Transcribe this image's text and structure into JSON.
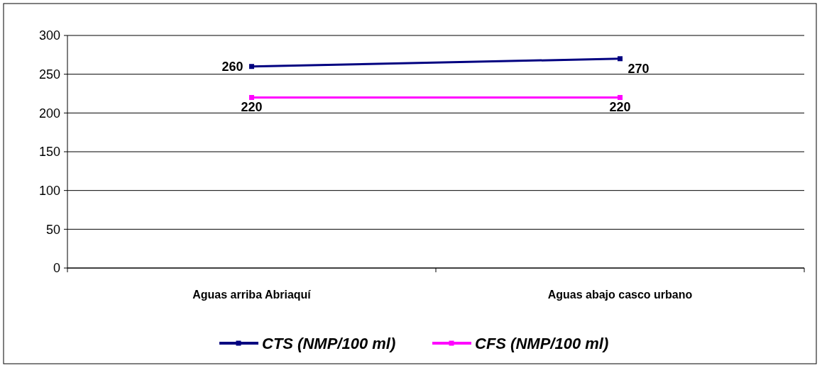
{
  "chart_data": {
    "type": "line",
    "categories": [
      "Aguas arriba Abriaquí",
      "Aguas abajo casco urbano"
    ],
    "series": [
      {
        "name": "CTS (NMP/100 ml)",
        "color": "#000080",
        "values": [
          260,
          270
        ]
      },
      {
        "name": "CFS (NMP/100 ml)",
        "color": "#ff00ff",
        "values": [
          220,
          220
        ]
      }
    ],
    "ylim": [
      0,
      300
    ],
    "yticks": [
      0,
      50,
      100,
      150,
      200,
      250,
      300
    ],
    "grid": "y",
    "legend": "bottom",
    "marker": "square",
    "data_labels": true
  }
}
